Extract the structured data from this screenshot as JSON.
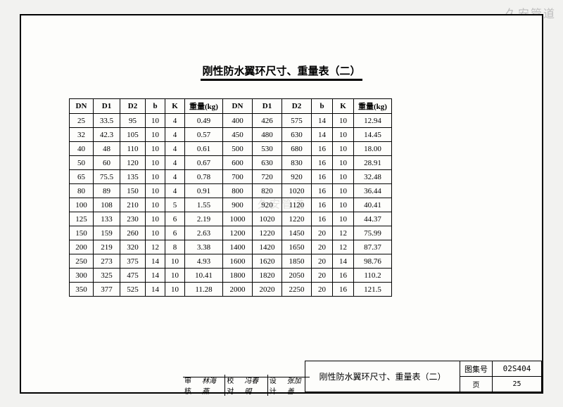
{
  "watermark": "久安管道",
  "title": "刚性防水翼环尺寸、重量表（二）",
  "headers_left": [
    "DN",
    "D1",
    "D2",
    "b",
    "K",
    "重量(kg)"
  ],
  "headers_right": [
    "DN",
    "D1",
    "D2",
    "b",
    "K",
    "重量(kg)"
  ],
  "rows": [
    {
      "l": [
        "25",
        "33.5",
        "95",
        "10",
        "4",
        "0.49"
      ],
      "r": [
        "400",
        "426",
        "575",
        "14",
        "10",
        "12.94"
      ]
    },
    {
      "l": [
        "32",
        "42.3",
        "105",
        "10",
        "4",
        "0.57"
      ],
      "r": [
        "450",
        "480",
        "630",
        "14",
        "10",
        "14.45"
      ]
    },
    {
      "l": [
        "40",
        "48",
        "110",
        "10",
        "4",
        "0.61"
      ],
      "r": [
        "500",
        "530",
        "680",
        "16",
        "10",
        "18.00"
      ]
    },
    {
      "l": [
        "50",
        "60",
        "120",
        "10",
        "4",
        "0.67"
      ],
      "r": [
        "600",
        "630",
        "830",
        "16",
        "10",
        "28.91"
      ]
    },
    {
      "l": [
        "65",
        "75.5",
        "135",
        "10",
        "4",
        "0.78"
      ],
      "r": [
        "700",
        "720",
        "920",
        "16",
        "10",
        "32.48"
      ]
    },
    {
      "l": [
        "80",
        "89",
        "150",
        "10",
        "4",
        "0.91"
      ],
      "r": [
        "800",
        "820",
        "1020",
        "16",
        "10",
        "36.44"
      ]
    },
    {
      "l": [
        "100",
        "108",
        "210",
        "10",
        "5",
        "1.55"
      ],
      "r": [
        "900",
        "920",
        "1120",
        "16",
        "10",
        "40.41"
      ]
    },
    {
      "l": [
        "125",
        "133",
        "230",
        "10",
        "6",
        "2.19"
      ],
      "r": [
        "1000",
        "1020",
        "1220",
        "16",
        "10",
        "44.37"
      ]
    },
    {
      "l": [
        "150",
        "159",
        "260",
        "10",
        "6",
        "2.63"
      ],
      "r": [
        "1200",
        "1220",
        "1450",
        "20",
        "12",
        "75.99"
      ]
    },
    {
      "l": [
        "200",
        "219",
        "320",
        "12",
        "8",
        "3.38"
      ],
      "r": [
        "1400",
        "1420",
        "1650",
        "20",
        "12",
        "87.37"
      ]
    },
    {
      "l": [
        "250",
        "273",
        "375",
        "14",
        "10",
        "4.93"
      ],
      "r": [
        "1600",
        "1620",
        "1850",
        "20",
        "14",
        "98.76"
      ]
    },
    {
      "l": [
        "300",
        "325",
        "475",
        "14",
        "10",
        "10.41"
      ],
      "r": [
        "1800",
        "1820",
        "2050",
        "20",
        "16",
        "110.2"
      ]
    },
    {
      "l": [
        "350",
        "377",
        "525",
        "14",
        "10",
        "11.28"
      ],
      "r": [
        "2000",
        "2020",
        "2250",
        "20",
        "16",
        "121.5"
      ]
    }
  ],
  "titleblock": {
    "desc": "刚性防水翼环尺寸、重量表（二）",
    "set_label": "图集号",
    "set_value": "02S404",
    "page_label": "页",
    "page_value": "25",
    "approve_label": "审核",
    "approve_sig": "林海燕",
    "check_label": "校对",
    "check_sig": "冯春明",
    "design_label": "设计",
    "design_sig": "张加善"
  }
}
